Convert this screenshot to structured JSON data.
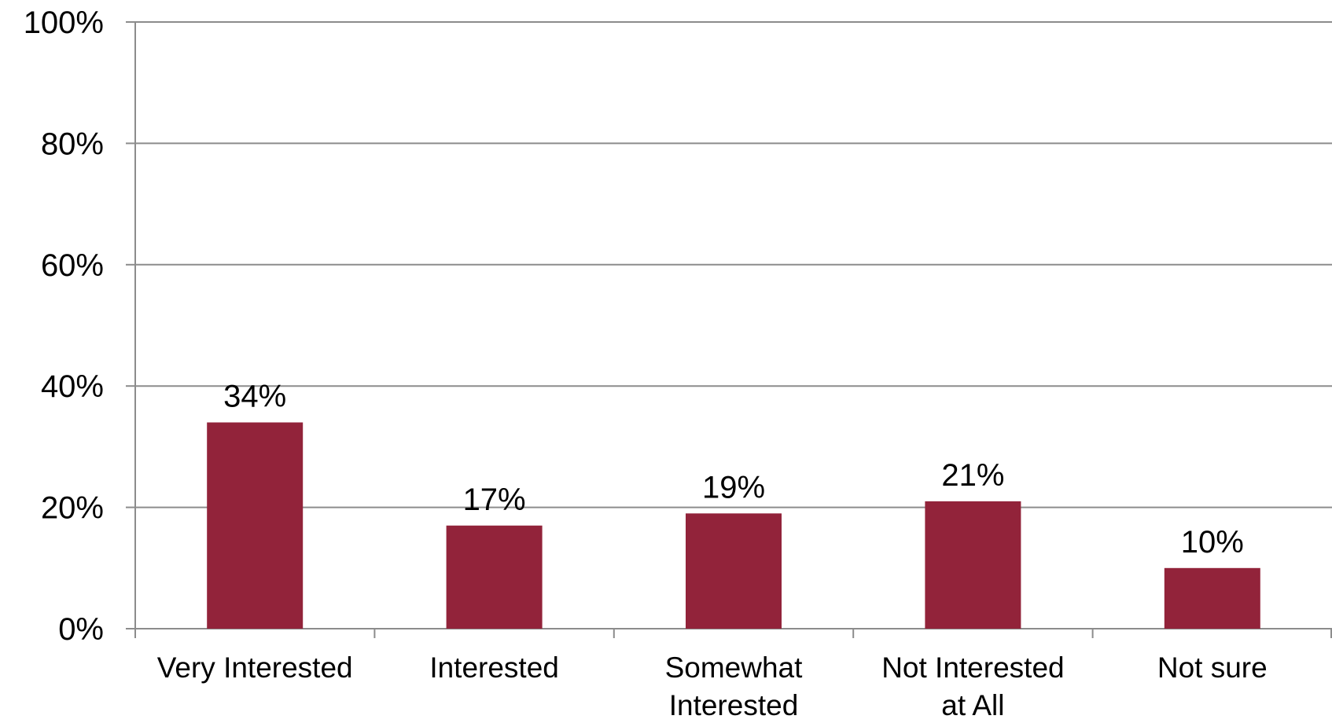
{
  "chart_data": {
    "type": "bar",
    "categories": [
      [
        "Very Interested"
      ],
      [
        "Interested"
      ],
      [
        "Somewhat",
        "Interested"
      ],
      [
        "Not Interested",
        "at All"
      ],
      [
        "Not sure"
      ]
    ],
    "values": [
      34,
      17,
      19,
      21,
      10
    ],
    "data_labels": [
      "34%",
      "17%",
      "19%",
      "21%",
      "10%"
    ],
    "ylim": [
      0,
      100
    ],
    "yticks": [
      0,
      20,
      40,
      60,
      80,
      100
    ],
    "ytick_labels": [
      "0%",
      "20%",
      "40%",
      "60%",
      "80%",
      "100%"
    ],
    "grid": true,
    "legend": "none",
    "colors": {
      "bar": "#92233A",
      "grid": "#8C8C8C",
      "axis": "#8C8C8C"
    }
  }
}
